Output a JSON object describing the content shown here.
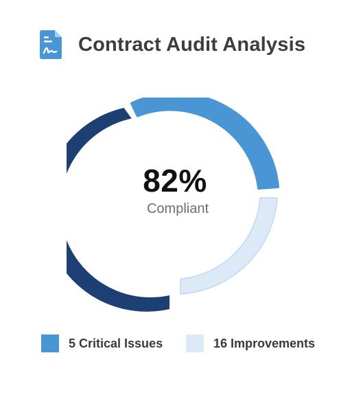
{
  "header": {
    "title": "Contract Audit Analysis",
    "icon": "document-signature-icon"
  },
  "summary": {
    "value": "82%",
    "label": "Compliant"
  },
  "legend": [
    {
      "label": "5 Critical Issues",
      "color": "#4a95d4"
    },
    {
      "label": "16 Improvements",
      "color": "#dce9f6"
    }
  ],
  "colors": {
    "accent": "#4a95d4",
    "dark": "#1e3f73",
    "light": "#dce9f6",
    "light_border": "#c3d8ee",
    "title": "#3d3d3d"
  }
}
